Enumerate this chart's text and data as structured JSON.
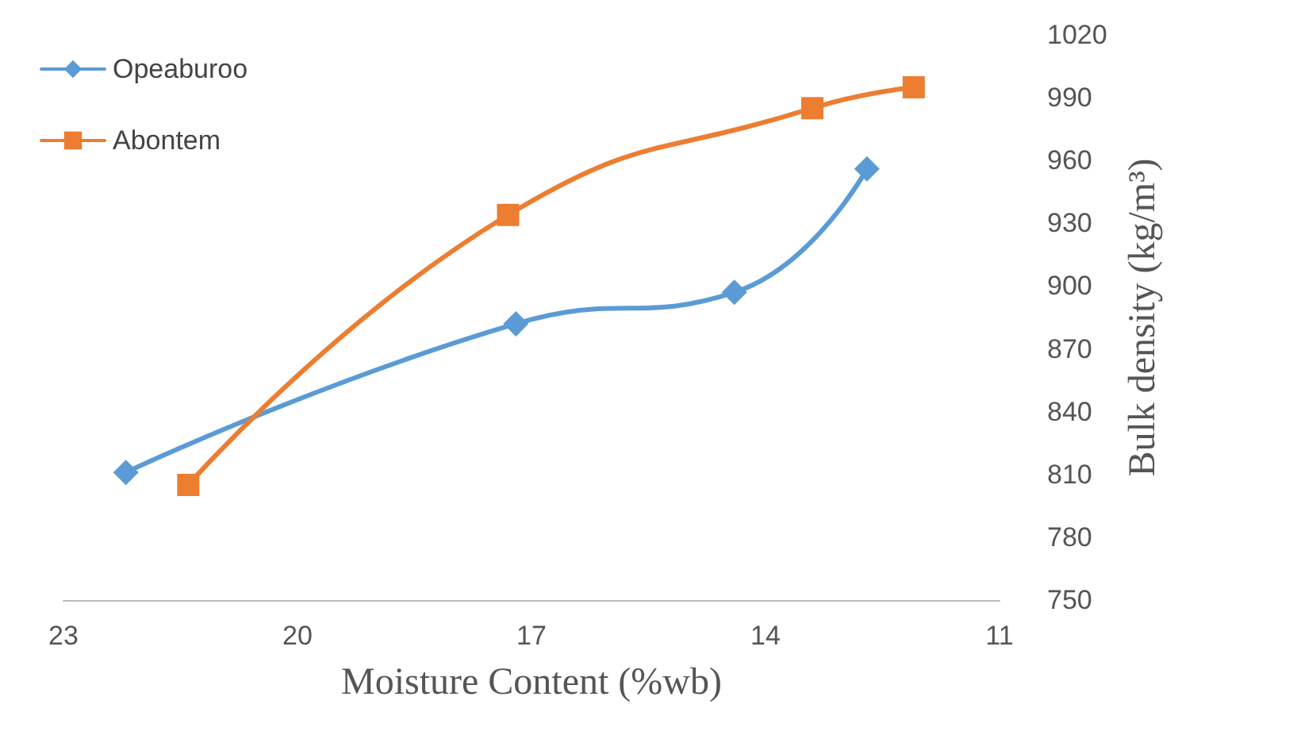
{
  "chart_data": {
    "type": "line",
    "xlabel": "Moisture Content (%wb)",
    "ylabel": "Bulk density (kg/m³)",
    "xlim": [
      23,
      11
    ],
    "xticks": [
      23,
      20,
      17,
      14,
      11
    ],
    "ylim": [
      750,
      1020
    ],
    "yticks": [
      750,
      780,
      810,
      840,
      870,
      900,
      930,
      960,
      990,
      1020
    ],
    "grid": false,
    "legend": "top left",
    "line_style": "solid",
    "series": [
      {
        "name": "Opeaburoo",
        "color": "#5b9bd5",
        "marker": "diamond",
        "x": [
          22.2,
          17.2,
          14.4,
          12.7
        ],
        "values": [
          811,
          882,
          897,
          956
        ]
      },
      {
        "name": "Abontem",
        "color": "#ed7d31",
        "marker": "square",
        "x": [
          21.4,
          17.3,
          13.4,
          12.1
        ],
        "values": [
          805,
          934,
          985,
          995
        ]
      }
    ]
  }
}
